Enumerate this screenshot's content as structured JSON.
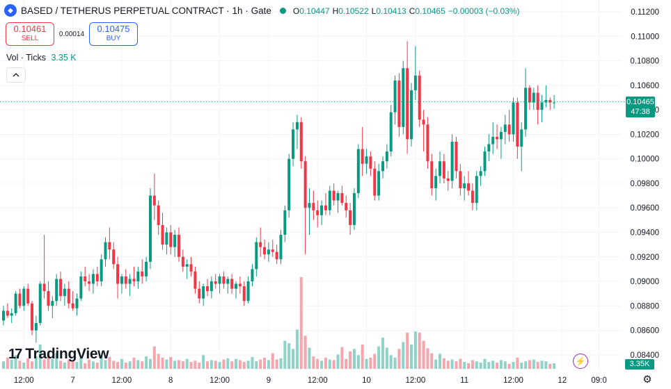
{
  "header": {
    "symbol_icon": "gem-icon",
    "title": "BASED / TETHERUS PERPETUAL CONTRACT · 1h · Gate",
    "ohlc": [
      {
        "k": "O",
        "v": "0.10447"
      },
      {
        "k": "H",
        "v": "0.10522"
      },
      {
        "k": "L",
        "v": "0.10413"
      },
      {
        "k": "C",
        "v": "0.10465"
      },
      {
        "k": "",
        "v": "−0.00003 (−0.03%)"
      }
    ]
  },
  "trade": {
    "sell_price": "0.10461",
    "sell_label": "SELL",
    "spread": "0.00014",
    "buy_price": "0.10475",
    "buy_label": "BUY"
  },
  "volume_legend": {
    "label": "Vol · Ticks",
    "value": "3.35 K"
  },
  "brand": {
    "mark": "17",
    "name": "TradingView"
  },
  "last_price": {
    "price": "0.10465",
    "countdown": "47:38",
    "value": 0.10465
  },
  "volume_badge": "3.35K",
  "colors": {
    "up": "#089981",
    "down": "#f23645",
    "up_vol": "#8fd3c8",
    "down_vol": "#f5a6ad",
    "grid": "#f0f3fa"
  },
  "chart_data": {
    "type": "candlestick",
    "y_axis_ticks": [
      "0.11200",
      "0.11000",
      "0.10800",
      "0.10600",
      "0.10400",
      "0.10200",
      "0.10000",
      "0.09800",
      "0.09600",
      "0.09400",
      "0.09200",
      "0.09000",
      "0.08800",
      "0.08600",
      "0.08400"
    ],
    "ylim": [
      0.0828,
      0.1124
    ],
    "x_axis_ticks": [
      {
        "label": "12:00",
        "bar": 5
      },
      {
        "label": "7",
        "bar": 17
      },
      {
        "label": "12:00",
        "bar": 29
      },
      {
        "label": "8",
        "bar": 41
      },
      {
        "label": "12:00",
        "bar": 53
      },
      {
        "label": "9",
        "bar": 65
      },
      {
        "label": "12:00",
        "bar": 77
      },
      {
        "label": "10",
        "bar": 89
      },
      {
        "label": "12:00",
        "bar": 101
      },
      {
        "label": "11",
        "bar": 113
      },
      {
        "label": "12:00",
        "bar": 125
      },
      {
        "label": "12",
        "bar": 137
      },
      {
        "label": "09:0",
        "bar": 146
      }
    ],
    "candles": [
      [
        0.0868,
        0.088,
        0.0864,
        0.0876,
        1
      ],
      [
        0.0876,
        0.0882,
        0.087,
        0.0872,
        1
      ],
      [
        0.0872,
        0.0878,
        0.0866,
        0.0874,
        1
      ],
      [
        0.0874,
        0.0892,
        0.0872,
        0.089,
        2
      ],
      [
        0.089,
        0.0894,
        0.0878,
        0.088,
        1
      ],
      [
        0.088,
        0.0896,
        0.0876,
        0.0894,
        1
      ],
      [
        0.0894,
        0.0898,
        0.088,
        0.0882,
        1
      ],
      [
        0.0882,
        0.0884,
        0.0856,
        0.086,
        2
      ],
      [
        0.086,
        0.0872,
        0.085,
        0.0866,
        2
      ],
      [
        0.0866,
        0.09,
        0.0864,
        0.0898,
        2
      ],
      [
        0.0898,
        0.0938,
        0.0886,
        0.0892,
        3
      ],
      [
        0.0892,
        0.09,
        0.0876,
        0.088,
        2
      ],
      [
        0.088,
        0.0888,
        0.087,
        0.0884,
        2
      ],
      [
        0.0884,
        0.0906,
        0.088,
        0.0902,
        2
      ],
      [
        0.0902,
        0.0908,
        0.0884,
        0.0888,
        1
      ],
      [
        0.0888,
        0.0898,
        0.088,
        0.0894,
        1
      ],
      [
        0.0894,
        0.09,
        0.0878,
        0.0882,
        1
      ],
      [
        0.0882,
        0.0892,
        0.0876,
        0.0878,
        1
      ],
      [
        0.0878,
        0.089,
        0.0872,
        0.0886,
        1
      ],
      [
        0.0886,
        0.0908,
        0.0884,
        0.0904,
        1
      ],
      [
        0.0904,
        0.0912,
        0.0896,
        0.09,
        1
      ],
      [
        0.09,
        0.0906,
        0.0892,
        0.0898,
        1
      ],
      [
        0.0898,
        0.091,
        0.089,
        0.0906,
        1
      ],
      [
        0.0906,
        0.0912,
        0.0896,
        0.09,
        1
      ],
      [
        0.09,
        0.0922,
        0.0896,
        0.0918,
        1
      ],
      [
        0.0918,
        0.0936,
        0.0912,
        0.0932,
        2
      ],
      [
        0.0932,
        0.0944,
        0.0918,
        0.0926,
        2
      ],
      [
        0.0926,
        0.0932,
        0.091,
        0.0914,
        1
      ],
      [
        0.0914,
        0.092,
        0.0886,
        0.0898,
        1
      ],
      [
        0.0898,
        0.0906,
        0.089,
        0.0904,
        1
      ],
      [
        0.0904,
        0.091,
        0.0894,
        0.0898,
        1
      ],
      [
        0.0898,
        0.0906,
        0.0888,
        0.0902,
        1
      ],
      [
        0.0902,
        0.0912,
        0.0896,
        0.09,
        1
      ],
      [
        0.09,
        0.0912,
        0.0894,
        0.0908,
        1
      ],
      [
        0.0908,
        0.0918,
        0.0898,
        0.0904,
        1
      ],
      [
        0.0904,
        0.092,
        0.09,
        0.0916,
        1
      ],
      [
        0.0916,
        0.0976,
        0.091,
        0.097,
        2
      ],
      [
        0.097,
        0.0988,
        0.095,
        0.0962,
        3
      ],
      [
        0.0962,
        0.0966,
        0.0938,
        0.0946,
        2
      ],
      [
        0.0946,
        0.0956,
        0.0926,
        0.093,
        2
      ],
      [
        0.093,
        0.0944,
        0.0922,
        0.094,
        1
      ],
      [
        0.094,
        0.0946,
        0.0922,
        0.0928,
        1
      ],
      [
        0.0928,
        0.0942,
        0.092,
        0.0938,
        1
      ],
      [
        0.0938,
        0.0944,
        0.0916,
        0.092,
        1
      ],
      [
        0.092,
        0.0926,
        0.0908,
        0.0912,
        1
      ],
      [
        0.0912,
        0.0918,
        0.0902,
        0.0914,
        1
      ],
      [
        0.0914,
        0.092,
        0.0904,
        0.0908,
        1
      ],
      [
        0.0908,
        0.0912,
        0.089,
        0.0894,
        1
      ],
      [
        0.0894,
        0.09,
        0.0882,
        0.0886,
        1
      ],
      [
        0.0886,
        0.0898,
        0.088,
        0.0896,
        1
      ],
      [
        0.0896,
        0.0902,
        0.0888,
        0.0892,
        1
      ],
      [
        0.0892,
        0.0904,
        0.0886,
        0.09,
        1
      ],
      [
        0.09,
        0.0906,
        0.0894,
        0.0898,
        1
      ],
      [
        0.0898,
        0.0906,
        0.089,
        0.0904,
        1
      ],
      [
        0.0904,
        0.0908,
        0.0894,
        0.0898,
        1
      ],
      [
        0.0898,
        0.0904,
        0.089,
        0.0902,
        1
      ],
      [
        0.0902,
        0.0906,
        0.089,
        0.0894,
        1
      ],
      [
        0.0894,
        0.09,
        0.0886,
        0.0898,
        1
      ],
      [
        0.0898,
        0.0904,
        0.089,
        0.0896,
        1
      ],
      [
        0.0896,
        0.09,
        0.088,
        0.0884,
        1
      ],
      [
        0.0884,
        0.0904,
        0.0882,
        0.09,
        2
      ],
      [
        0.09,
        0.0914,
        0.0896,
        0.091,
        2
      ],
      [
        0.091,
        0.0936,
        0.0904,
        0.0932,
        2
      ],
      [
        0.0932,
        0.0944,
        0.092,
        0.0928,
        1
      ],
      [
        0.0928,
        0.0934,
        0.0918,
        0.0922,
        1
      ],
      [
        0.0922,
        0.0932,
        0.0916,
        0.0926,
        1
      ],
      [
        0.0926,
        0.0934,
        0.092,
        0.0924,
        1
      ],
      [
        0.0924,
        0.093,
        0.0914,
        0.0918,
        1
      ],
      [
        0.0918,
        0.0942,
        0.0914,
        0.0938,
        2
      ],
      [
        0.0938,
        0.0962,
        0.0932,
        0.0958,
        3
      ],
      [
        0.0958,
        0.1004,
        0.0952,
        0.1,
        4
      ],
      [
        0.1,
        0.103,
        0.0994,
        0.1024,
        3
      ],
      [
        0.1024,
        0.1036,
        0.1008,
        0.103,
        3
      ],
      [
        0.103,
        0.1034,
        0.0992,
        0.0998,
        4
      ],
      [
        0.0998,
        0.1002,
        0.0922,
        0.096,
        6
      ],
      [
        0.096,
        0.0976,
        0.0938,
        0.0964,
        3
      ],
      [
        0.0964,
        0.0974,
        0.095,
        0.0958,
        2
      ],
      [
        0.0958,
        0.0966,
        0.0944,
        0.0954,
        2
      ],
      [
        0.0954,
        0.0966,
        0.0946,
        0.0962,
        1
      ],
      [
        0.0962,
        0.0972,
        0.0954,
        0.0958,
        2
      ],
      [
        0.0958,
        0.0978,
        0.0954,
        0.0974,
        1
      ],
      [
        0.0974,
        0.098,
        0.0962,
        0.0966,
        1
      ],
      [
        0.0966,
        0.0974,
        0.0956,
        0.0972,
        1
      ],
      [
        0.0972,
        0.0978,
        0.0962,
        0.0964,
        1
      ],
      [
        0.0964,
        0.097,
        0.0952,
        0.0958,
        2
      ],
      [
        0.0958,
        0.0964,
        0.0938,
        0.0946,
        2
      ],
      [
        0.0946,
        0.0976,
        0.0942,
        0.0972,
        3
      ],
      [
        0.0972,
        0.1012,
        0.0968,
        0.1008,
        3
      ],
      [
        0.1008,
        0.1026,
        0.0986,
        0.0996,
        3
      ],
      [
        0.0996,
        0.1008,
        0.0988,
        0.1002,
        2
      ],
      [
        0.1002,
        0.1006,
        0.0986,
        0.0992,
        2
      ],
      [
        0.0992,
        0.0998,
        0.0966,
        0.097,
        2
      ],
      [
        0.097,
        0.0996,
        0.0966,
        0.099,
        2
      ],
      [
        0.099,
        0.1002,
        0.0984,
        0.0998,
        1
      ],
      [
        0.0998,
        0.1012,
        0.0992,
        0.1006,
        1
      ],
      [
        0.1006,
        0.1044,
        0.1002,
        0.1038,
        3
      ],
      [
        0.1038,
        0.1068,
        0.1028,
        0.1064,
        2
      ],
      [
        0.1064,
        0.107,
        0.1018,
        0.1026,
        3
      ],
      [
        0.1026,
        0.108,
        0.102,
        0.1074,
        3
      ],
      [
        0.1074,
        0.1096,
        0.1004,
        0.1016,
        4
      ],
      [
        0.1016,
        0.1062,
        0.101,
        0.1056,
        4
      ],
      [
        0.1056,
        0.1092,
        0.1048,
        0.1068,
        2
      ],
      [
        0.1068,
        0.1072,
        0.1026,
        0.1032,
        2
      ],
      [
        0.1032,
        0.104,
        0.1006,
        0.1028,
        2
      ],
      [
        0.1028,
        0.1034,
        0.0992,
        0.0998,
        2
      ],
      [
        0.0998,
        0.1004,
        0.097,
        0.0976,
        2
      ],
      [
        0.0976,
        0.0992,
        0.0966,
        0.0986,
        1
      ],
      [
        0.0986,
        0.1006,
        0.098,
        0.0998,
        2
      ],
      [
        0.0998,
        0.1004,
        0.098,
        0.0984,
        1
      ],
      [
        0.0984,
        0.099,
        0.0974,
        0.0982,
        1
      ],
      [
        0.0982,
        0.102,
        0.0976,
        0.1014,
        2
      ],
      [
        0.1014,
        0.1018,
        0.0984,
        0.099,
        1
      ],
      [
        0.099,
        0.0996,
        0.097,
        0.0976,
        1
      ],
      [
        0.0976,
        0.0986,
        0.0966,
        0.098,
        1
      ],
      [
        0.098,
        0.099,
        0.097,
        0.0974,
        1
      ],
      [
        0.0974,
        0.098,
        0.0958,
        0.0964,
        1
      ],
      [
        0.0964,
        0.099,
        0.0958,
        0.0986,
        1
      ],
      [
        0.0986,
        0.0994,
        0.0978,
        0.099,
        1
      ],
      [
        0.099,
        0.101,
        0.0986,
        0.1006,
        1
      ],
      [
        0.1006,
        0.102,
        0.0998,
        0.1012,
        1
      ],
      [
        0.1012,
        0.103,
        0.1004,
        0.1018,
        1
      ],
      [
        0.1018,
        0.1028,
        0.1008,
        0.1016,
        1
      ],
      [
        0.1016,
        0.1026,
        0.1,
        0.1022,
        1
      ],
      [
        0.1022,
        0.1036,
        0.1012,
        0.1028,
        1
      ],
      [
        0.1028,
        0.104,
        0.1014,
        0.102,
        2
      ],
      [
        0.102,
        0.105,
        0.1014,
        0.1046,
        2
      ],
      [
        0.1046,
        0.105,
        0.1,
        0.101,
        2
      ],
      [
        0.101,
        0.103,
        0.099,
        0.1024,
        1
      ],
      [
        0.1024,
        0.1074,
        0.1018,
        0.1058,
        2
      ],
      [
        0.1058,
        0.106,
        0.104,
        0.1046,
        2
      ],
      [
        0.1046,
        0.1058,
        0.104,
        0.1054,
        2
      ],
      [
        0.1054,
        0.106,
        0.1028,
        0.104,
        2
      ],
      [
        0.104,
        0.1052,
        0.103,
        0.1046,
        1
      ],
      [
        0.1046,
        0.106,
        0.1042,
        0.1048,
        1
      ],
      [
        0.1048,
        0.105,
        0.104,
        0.1046,
        1
      ],
      [
        0.1046,
        0.1052,
        0.1041,
        0.1046,
        1
      ]
    ],
    "volumes": [
      1.2,
      1.8,
      1.5,
      2.2,
      1.3,
      1.0,
      1.7,
      1.2,
      2.0,
      3.9,
      1.5,
      2.1,
      1.6,
      2.5,
      1.3,
      1.0,
      1.4,
      1.2,
      1.1,
      1.8,
      0.9,
      1.5,
      1.2,
      1.0,
      2.2,
      1.4,
      1.9,
      1.3,
      1.1,
      1.6,
      1.0,
      1.2,
      1.8,
      1.4,
      1.2,
      2.0,
      1.6,
      3.6,
      2.4,
      1.8,
      1.5,
      1.9,
      1.3,
      1.4,
      1.2,
      1.6,
      1.1,
      1.3,
      1.0,
      2.2,
      1.2,
      1.4,
      1.3,
      1.1,
      1.5,
      1.7,
      1.2,
      1.6,
      1.4,
      1.1,
      1.3,
      1.9,
      1.2,
      1.5,
      1.8,
      1.4,
      2.5,
      1.5,
      1.7,
      4.5,
      4.1,
      3.2,
      6.3,
      14.7,
      5.3,
      3.4,
      2.0,
      1.6,
      1.3,
      1.8,
      1.5,
      1.4,
      2.3,
      3.5,
      1.6,
      2.8,
      3.2,
      2.2,
      3.9,
      1.6,
      1.8,
      2.4,
      3.6,
      5.0,
      3.4,
      2.2,
      1.8,
      3.2,
      4.3,
      5.8,
      3.9,
      6.0,
      5.8,
      4.5,
      3.3,
      2.5,
      1.5,
      2.4,
      1.7,
      1.3,
      1.5,
      1.2,
      1.6,
      1.1,
      0.9,
      1.4,
      1.2,
      1.0,
      1.6,
      1.1,
      1.3,
      1.0,
      1.4,
      1.2,
      0.8,
      1.1,
      1.8,
      1.0,
      1.2,
      1.4,
      1.5,
      1.1,
      1.3,
      1.2,
      0.8,
      0.9
    ]
  }
}
